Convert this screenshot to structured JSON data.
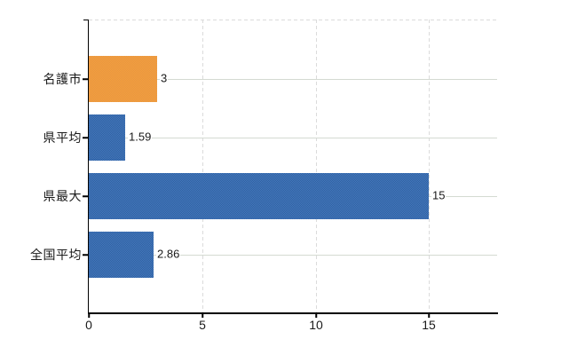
{
  "chart_data": {
    "type": "bar",
    "orientation": "horizontal",
    "title": "",
    "categories": [
      "名護市",
      "県平均",
      "県最大",
      "全国平均"
    ],
    "values": [
      3,
      1.59,
      15,
      2.86
    ],
    "data_labels": [
      "3",
      "1.59",
      "15",
      "2.86"
    ],
    "bar_colors": [
      "orange",
      "blue",
      "blue",
      "blue"
    ],
    "x_tick_values": [
      0,
      5,
      10,
      15
    ],
    "x_tick_labels": [
      "0",
      "5",
      "10",
      "15"
    ],
    "xlim": [
      0,
      18
    ],
    "xlabel": "",
    "ylabel": "",
    "grid": true,
    "legend": false
  },
  "colors": {
    "background": "#FFFFFF",
    "axis": "#000000",
    "text": "#1A1A1A",
    "grid_horizontal": "#D4DAD2",
    "grid_vertical_dashed": "#DBDBDB",
    "bar_fills": {
      "orange": {
        "a": "#F5A437",
        "b": "#E69148"
      },
      "blue": {
        "a": "#4478BF",
        "b": "#30619F"
      }
    }
  }
}
